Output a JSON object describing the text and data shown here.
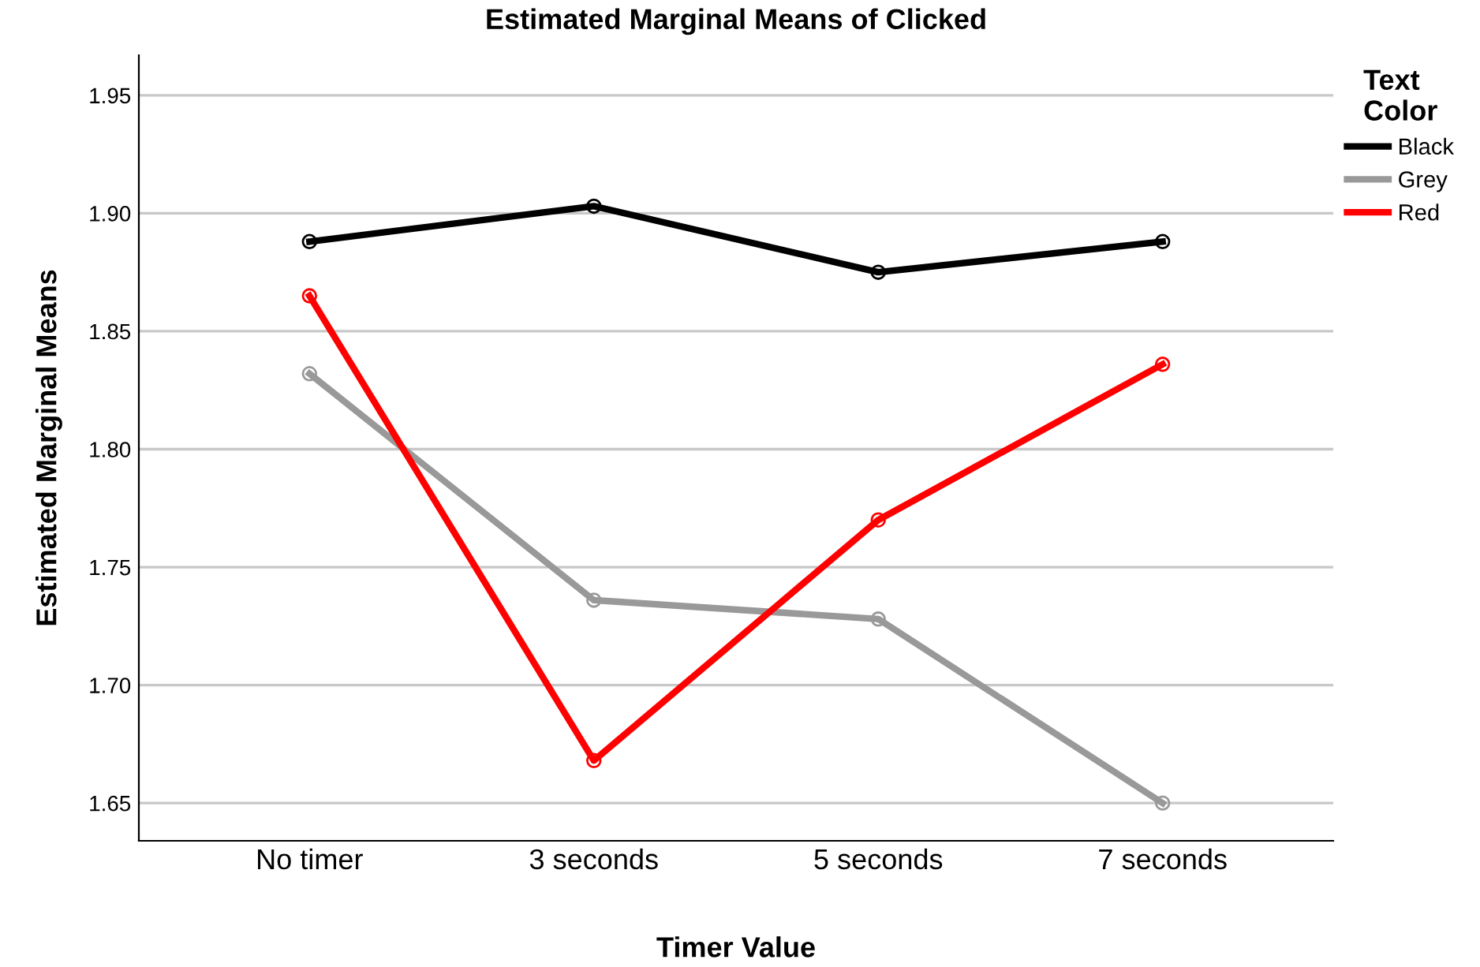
{
  "chart_data": {
    "type": "line",
    "title": "Estimated Marginal Means of Clicked",
    "xlabel": "Timer Value",
    "ylabel": "Estimated Marginal Means",
    "legend_title": "Text\nColor",
    "categories": [
      "No timer",
      "3 seconds",
      "5 seconds",
      "7 seconds"
    ],
    "series": [
      {
        "name": "Black",
        "color": "#000000",
        "values": [
          1.888,
          1.903,
          1.875,
          1.888
        ]
      },
      {
        "name": "Grey",
        "color": "#999999",
        "values": [
          1.832,
          1.736,
          1.728,
          1.65
        ]
      },
      {
        "name": "Red",
        "color": "#ff0000",
        "values": [
          1.865,
          1.668,
          1.77,
          1.836
        ]
      }
    ],
    "ylim": [
      1.634,
      1.967
    ],
    "yticks": [
      1.65,
      {
        "value": 1.7,
        "label": "1.70"
      },
      1.75,
      {
        "value": 1.8,
        "label": "1.80"
      },
      1.85,
      {
        "value": 1.9,
        "label": "1.90"
      },
      1.95
    ],
    "grid": "y",
    "legend": "top right",
    "marker": "circle",
    "line_style": "solid"
  }
}
